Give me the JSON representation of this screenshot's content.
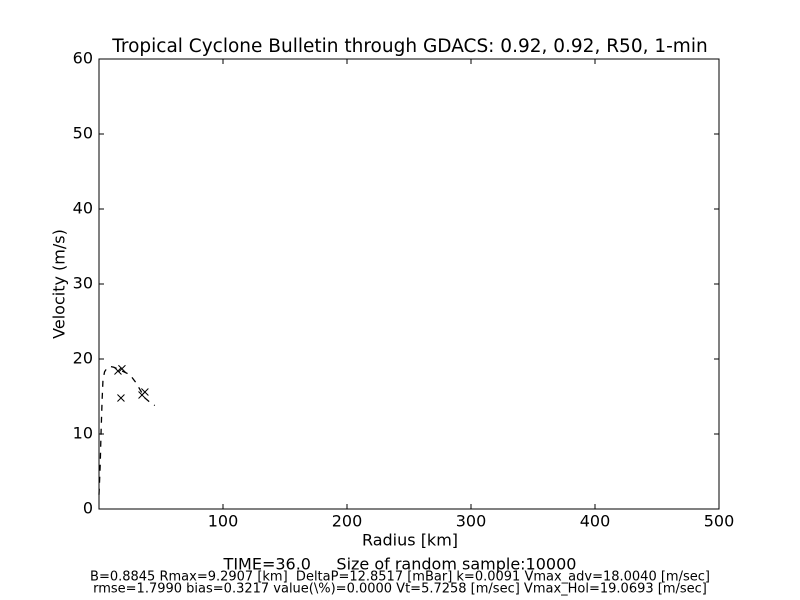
{
  "chart_data": {
    "type": "line",
    "title": "Tropical Cyclone Bulletin through GDACS: 0.92, 0.92, R50, 1-min",
    "x_label": "Radius [km]",
    "y_label": "Velocity (m/s)",
    "footer": [
      "TIME=36.0     Size of random sample:10000",
      "B=0.8845 Rmax=9.2907 [km]  DeltaP=12.8517 [mBar] k=0.0091 Vmax_adv=18.0040 [m/sec]",
      "rmse=1.7990 bias=0.3217 value(\\%)=0.0000 Vt=5.7258 [m/sec] Vmax_Hol=19.0693 [m/sec]"
    ],
    "x": [
      0,
      1,
      1.6,
      2.5,
      3.2,
      4.5,
      6.5,
      9,
      12,
      16,
      20,
      25,
      30,
      37,
      42,
      45
    ],
    "series": [
      {
        "color": "#000000",
        "dash": "dashed",
        "values": [
          1.9,
          6,
          9.9,
          14.5,
          17.2,
          18.3,
          18.8,
          19.0,
          18.9,
          18.6,
          18.3,
          17.9,
          16.8,
          14.8,
          14.1,
          13.8
        ]
      }
    ],
    "scatter": {
      "marker": "x",
      "color": "#000000",
      "x": [
        15.3,
        18.5,
        17.7,
        34.7,
        37
      ],
      "y": [
        18.4,
        18.7,
        14.8,
        15.2,
        15.6
      ]
    },
    "xlim": [
      0,
      500
    ],
    "ylim": [
      0,
      60
    ],
    "xticks": [
      100,
      200,
      300,
      400,
      500
    ],
    "yticks": [
      0,
      10,
      20,
      30,
      40,
      50,
      60
    ]
  }
}
